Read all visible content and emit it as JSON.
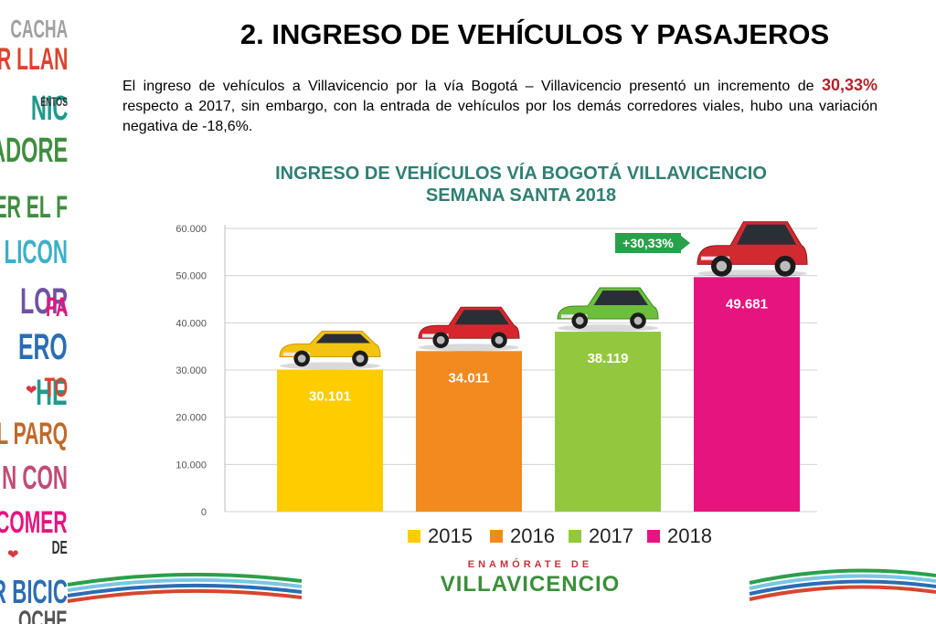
{
  "slide": {
    "title": "2. INGRESO DE VEHÍCULOS Y PASAJEROS",
    "paragraph_before": "El ingreso de vehículos a Villavicencio por la vía Bogotá – Villavicencio presentó un incremento de ",
    "paragraph_highlight": "30,33%",
    "paragraph_after": " respecto a 2017, sin embargo, con la entrada de vehículos por los demás corredores viales, hubo una variación negativa de -18,6%."
  },
  "side_strip": {
    "words": [
      "CACHA",
      "ER LLAN",
      "NIC",
      "ENTOS",
      "ADORE",
      "MER EL F",
      "LICON",
      "LOR",
      "PA",
      "ERO",
      "HE",
      "TO",
      "R EL PARQ",
      "N CON",
      "COMER",
      "DE",
      "R BICIC",
      "OCHE"
    ]
  },
  "chart_data": {
    "type": "bar",
    "title_line1": "INGRESO DE VEHÍCULOS VÍA BOGOTÁ VILLAVICENCIO",
    "title_line2": "SEMANA SANTA 2018",
    "categories": [
      "2015",
      "2016",
      "2017",
      "2018"
    ],
    "values": [
      30101,
      34011,
      38119,
      49681
    ],
    "value_labels": [
      "30.101",
      "34.011",
      "38.119",
      "49.681"
    ],
    "bar_colors": [
      "#ffcc00",
      "#f28a1f",
      "#93c83e",
      "#e6147f"
    ],
    "ylim": [
      0,
      60000
    ],
    "yticks": [
      0,
      10000,
      20000,
      30000,
      40000,
      50000,
      60000
    ],
    "ytick_labels": [
      "0",
      "10.000",
      "20.000",
      "30.000",
      "40.000",
      "50.000",
      "60.000"
    ],
    "grid": true,
    "legend_position": "bottom",
    "annotation": "+30,33%",
    "annotation_color": "#2aa04a",
    "car_icons": [
      "yellow-sports-car-icon",
      "red-hatchback-car-icon",
      "green-hatchback-car-icon",
      "red-suv-car-icon"
    ]
  },
  "footer": {
    "brand_top": "ENAMÓRATE DE",
    "brand_main": "VILLAVICENCIO"
  }
}
